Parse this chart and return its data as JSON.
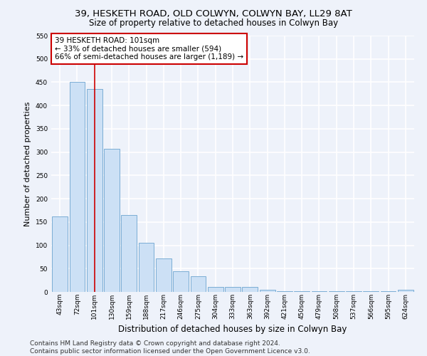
{
  "title_line1": "39, HESKETH ROAD, OLD COLWYN, COLWYN BAY, LL29 8AT",
  "title_line2": "Size of property relative to detached houses in Colwyn Bay",
  "xlabel": "Distribution of detached houses by size in Colwyn Bay",
  "ylabel": "Number of detached properties",
  "categories": [
    "43sqm",
    "72sqm",
    "101sqm",
    "130sqm",
    "159sqm",
    "188sqm",
    "217sqm",
    "246sqm",
    "275sqm",
    "304sqm",
    "333sqm",
    "363sqm",
    "392sqm",
    "421sqm",
    "450sqm",
    "479sqm",
    "508sqm",
    "537sqm",
    "566sqm",
    "595sqm",
    "624sqm"
  ],
  "values": [
    162,
    450,
    435,
    307,
    165,
    105,
    72,
    44,
    33,
    10,
    10,
    10,
    5,
    2,
    2,
    1,
    1,
    1,
    1,
    1,
    4
  ],
  "bar_color": "#cce0f5",
  "bar_edge_color": "#7aadd4",
  "highlight_index": 2,
  "highlight_line_color": "#cc0000",
  "annotation_text": "39 HESKETH ROAD: 101sqm\n← 33% of detached houses are smaller (594)\n66% of semi-detached houses are larger (1,189) →",
  "annotation_box_color": "#ffffff",
  "annotation_box_edge_color": "#cc0000",
  "ylim": [
    0,
    550
  ],
  "yticks": [
    0,
    50,
    100,
    150,
    200,
    250,
    300,
    350,
    400,
    450,
    500,
    550
  ],
  "footer_line1": "Contains HM Land Registry data © Crown copyright and database right 2024.",
  "footer_line2": "Contains public sector information licensed under the Open Government Licence v3.0.",
  "background_color": "#eef2fa",
  "grid_color": "#ffffff",
  "title_fontsize": 9.5,
  "subtitle_fontsize": 8.5,
  "axis_label_fontsize": 8,
  "tick_fontsize": 6.5,
  "annotation_fontsize": 7.5,
  "footer_fontsize": 6.5
}
